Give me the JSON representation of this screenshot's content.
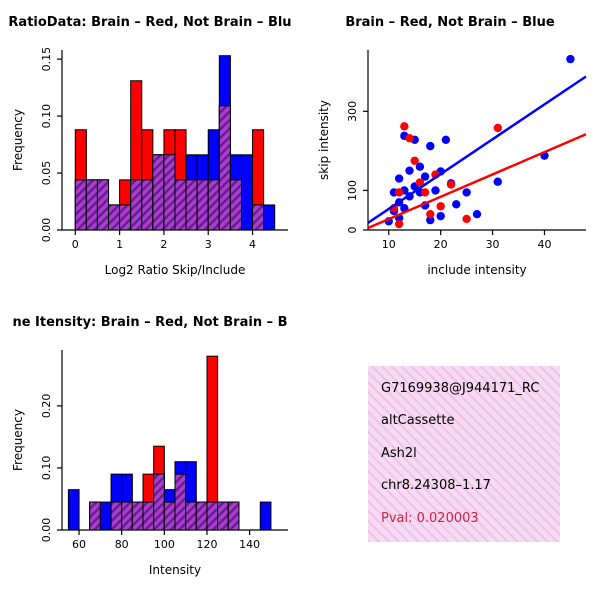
{
  "figure": {
    "background": "#ffffff"
  },
  "colors": {
    "red": "#ff0000",
    "blue": "#0000ff",
    "overlap_base": "#b13cc4",
    "overlap_line": "#5b1f9e",
    "info_bg": "#f7dbf2",
    "info_stripe": "#eec3e7",
    "pval": "#cc2244"
  },
  "chart_data": [
    {
      "id": "hist-ratio",
      "type": "histogram",
      "title": "RatioData: Brain – Red, Not Brain – Blu",
      "xlabel": "Log2 Ratio Skip/Include",
      "ylabel": "Frequency",
      "xlim": [
        -0.3,
        4.8
      ],
      "ylim": [
        0,
        0.158
      ],
      "xticks": [
        0,
        1,
        2,
        3,
        4
      ],
      "xtick_labels": [
        "0",
        "1",
        "2",
        "3",
        "4"
      ],
      "yticks": [
        0,
        0.05,
        0.1,
        0.15
      ],
      "ytick_labels": [
        "0.00",
        "0.05",
        "0.10",
        "0.15"
      ],
      "bin_start": 0,
      "bin_width": 0.25,
      "grid": false,
      "series": [
        {
          "name": "Brain",
          "color": "red",
          "values": [
            0.088,
            0.044,
            0.044,
            0.022,
            0.044,
            0.131,
            0.088,
            0.066,
            0.088,
            0.088,
            0.044,
            0.044,
            0.044,
            0.109,
            0.044,
            0.0,
            0.088,
            0.0
          ]
        },
        {
          "name": "Not Brain",
          "color": "blue",
          "values": [
            0.044,
            0.044,
            0.044,
            0.022,
            0.022,
            0.044,
            0.044,
            0.066,
            0.066,
            0.044,
            0.066,
            0.066,
            0.088,
            0.153,
            0.066,
            0.066,
            0.022,
            0.022
          ]
        }
      ]
    },
    {
      "id": "scatter-intensity",
      "type": "scatter",
      "title": "Brain – Red, Not Brain – Blue",
      "xlabel": "include intensity",
      "ylabel": "skip intensity",
      "xlim": [
        6,
        48
      ],
      "ylim": [
        0,
        455
      ],
      "xticks": [
        10,
        20,
        30,
        40
      ],
      "xtick_labels": [
        "10",
        "20",
        "30",
        "40"
      ],
      "yticks": [
        0,
        100,
        300
      ],
      "ytick_labels": [
        "0",
        "100",
        "300"
      ],
      "grid": false,
      "series": [
        {
          "name": "Not Brain",
          "color": "blue",
          "points": [
            [
              10,
              22
            ],
            [
              11,
              48
            ],
            [
              11,
              95
            ],
            [
              12,
              70
            ],
            [
              12,
              130
            ],
            [
              12,
              30
            ],
            [
              13,
              100
            ],
            [
              13,
              55
            ],
            [
              13,
              238
            ],
            [
              14,
              150
            ],
            [
              14,
              85
            ],
            [
              15,
              228
            ],
            [
              15,
              110
            ],
            [
              16,
              95
            ],
            [
              16,
              160
            ],
            [
              17,
              135
            ],
            [
              17,
              62
            ],
            [
              18,
              212
            ],
            [
              18,
              25
            ],
            [
              19,
              100
            ],
            [
              20,
              148
            ],
            [
              20,
              35
            ],
            [
              21,
              228
            ],
            [
              22,
              118
            ],
            [
              23,
              65
            ],
            [
              25,
              95
            ],
            [
              27,
              40
            ],
            [
              31,
              122
            ],
            [
              40,
              188
            ],
            [
              45,
              432
            ]
          ]
        },
        {
          "name": "Brain",
          "color": "red",
          "points": [
            [
              11,
              55
            ],
            [
              12,
              95
            ],
            [
              12,
              15
            ],
            [
              13,
              262
            ],
            [
              14,
              232
            ],
            [
              15,
              175
            ],
            [
              16,
              120
            ],
            [
              17,
              95
            ],
            [
              18,
              40
            ],
            [
              19,
              140
            ],
            [
              20,
              60
            ],
            [
              22,
              115
            ],
            [
              25,
              28
            ],
            [
              31,
              258
            ]
          ]
        }
      ],
      "fit_lines": [
        {
          "name": "Not Brain fit",
          "color": "blue",
          "x": [
            6,
            48
          ],
          "y": [
            18,
            388
          ]
        },
        {
          "name": "Brain fit",
          "color": "red",
          "x": [
            6,
            48
          ],
          "y": [
            5,
            242
          ]
        }
      ]
    },
    {
      "id": "hist-intensity",
      "type": "histogram",
      "title": "ne Itensity: Brain – Red, Not Brain – B",
      "xlabel": "Intensity",
      "ylabel": "Frequency",
      "xlim": [
        52,
        158
      ],
      "ylim": [
        0,
        0.29
      ],
      "xticks": [
        60,
        80,
        100,
        120,
        140
      ],
      "xtick_labels": [
        "60",
        "80",
        "100",
        "120",
        "140"
      ],
      "yticks": [
        0,
        0.1,
        0.2
      ],
      "ytick_labels": [
        "0.00",
        "0.10",
        "0.20"
      ],
      "bin_start": 55,
      "bin_width": 5,
      "grid": false,
      "series": [
        {
          "name": "Brain",
          "color": "red",
          "values": [
            0,
            0,
            0.045,
            0,
            0.045,
            0.045,
            0.045,
            0.09,
            0.135,
            0.045,
            0.09,
            0.045,
            0.045,
            0.28,
            0.045,
            0.045,
            0,
            0,
            0,
            0
          ]
        },
        {
          "name": "Not Brain",
          "color": "blue",
          "values": [
            0.065,
            0,
            0.045,
            0.045,
            0.09,
            0.09,
            0.045,
            0.045,
            0.09,
            0.065,
            0.11,
            0.11,
            0.045,
            0.045,
            0.045,
            0.045,
            0,
            0,
            0.045,
            0
          ]
        }
      ]
    }
  ],
  "info_panel": {
    "lines": [
      {
        "id": "probe-id",
        "text": "G7169938@J944171_RC"
      },
      {
        "id": "event-type",
        "text": "altCassette"
      },
      {
        "id": "gene-symbol",
        "text": "Ash2l"
      },
      {
        "id": "locus",
        "text": "chr8.24308–1.17"
      },
      {
        "id": "pvalue",
        "text": "Pval: 0.020003"
      }
    ]
  }
}
